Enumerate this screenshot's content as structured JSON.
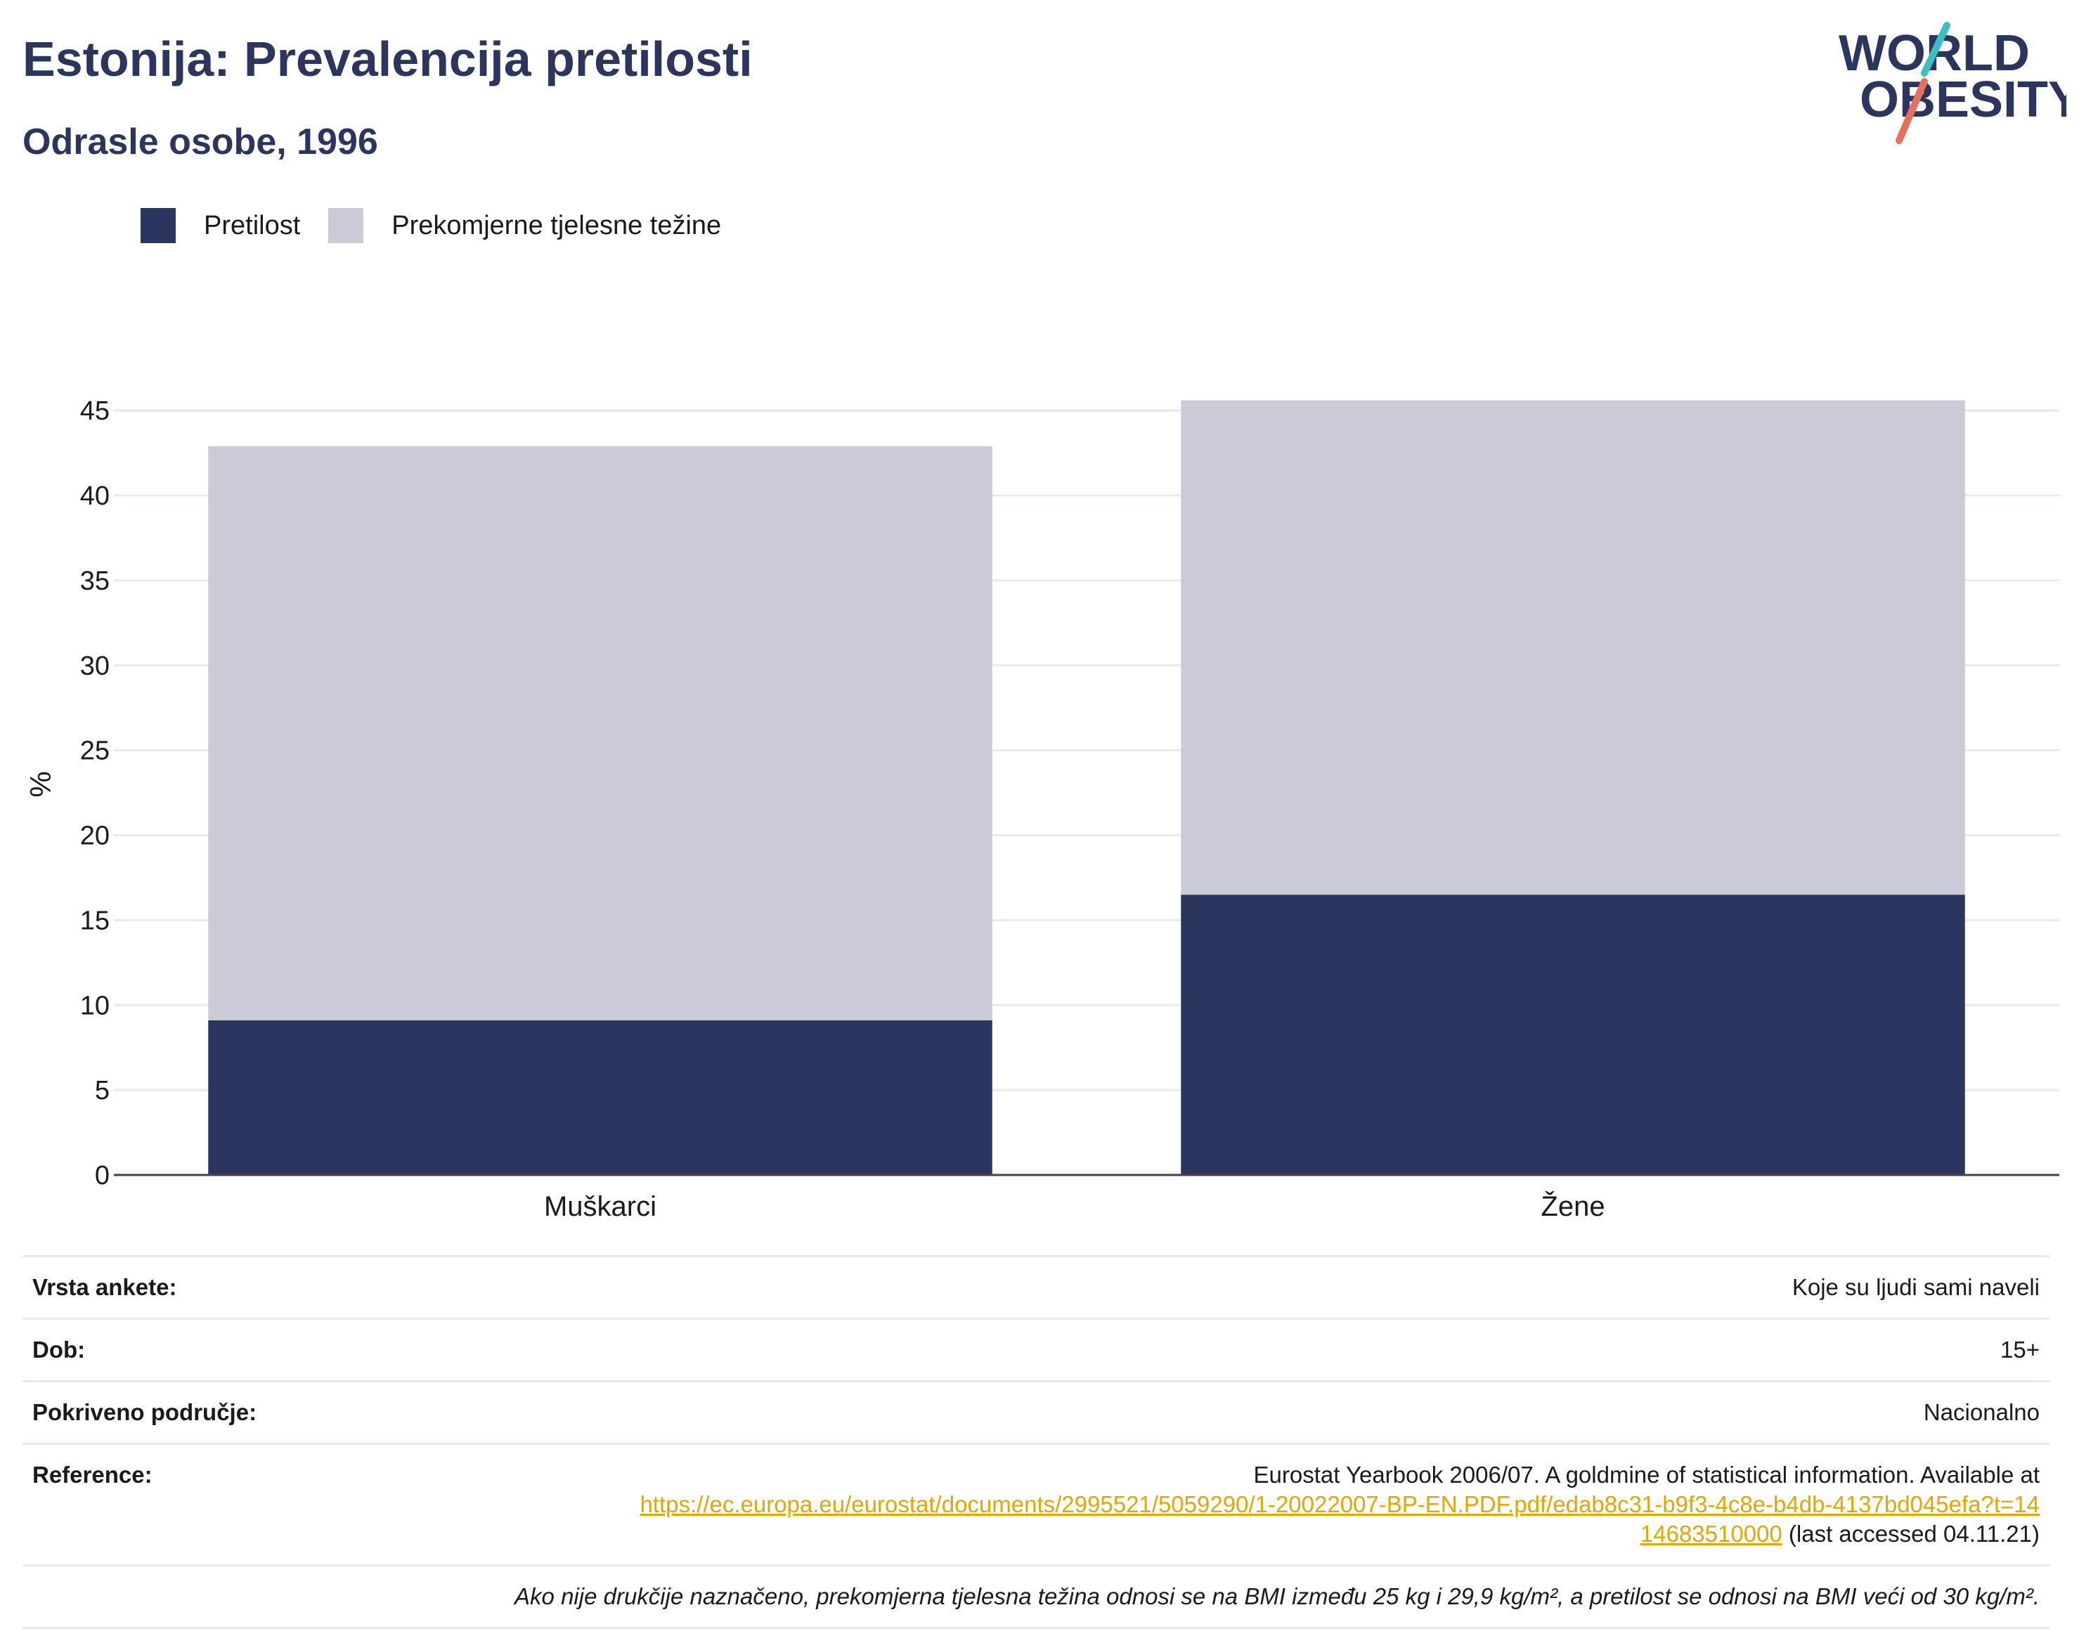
{
  "header": {
    "title": "Estonija: Prevalencija pretilosti",
    "subtitle": "Odrasle osobe, 1996"
  },
  "logo": {
    "line1": "WORLD",
    "line2": "OBESITY",
    "accent_teal": "#3bbfc0",
    "accent_coral": "#e8705a",
    "text_color": "#2b365f"
  },
  "legend": [
    {
      "label": "Pretilost",
      "color": "#2b365f"
    },
    {
      "label": "Prekomjerne tjelesne težine",
      "color": "#cacbd7"
    }
  ],
  "chart_data": {
    "type": "bar",
    "stacked": true,
    "categories": [
      "Muškarci",
      "Žene"
    ],
    "series": [
      {
        "name": "Pretilost",
        "values": [
          9.1,
          16.5
        ],
        "color": "#2b365f"
      },
      {
        "name": "Prekomjerne tjelesne težine",
        "values": [
          33.8,
          29.1
        ],
        "color": "#cacbd7"
      }
    ],
    "ylabel": "%",
    "ylim": [
      0,
      45
    ],
    "yticks": [
      0,
      5,
      10,
      15,
      20,
      25,
      30,
      35,
      40,
      45
    ],
    "grid": true,
    "legend_position": "top-left"
  },
  "info": {
    "survey_type_label": "Vrsta ankete:",
    "survey_type_value": "Koje su ljudi sami naveli",
    "age_label": "Dob:",
    "age_value": "15+",
    "coverage_label": "Pokriveno područje:",
    "coverage_value": "Nacionalno",
    "reference_label": "Reference:",
    "reference_text": "Eurostat Yearbook 2006/07. A goldmine of statistical information. Available at",
    "reference_url": "https://ec.europa.eu/eurostat/documents/2995521/5059290/1-20022007-BP-EN.PDF.pdf/edab8c31-b9f3-4c8e-b4db-4137bd045efa?t=1414683510000",
    "reference_suffix": "(last accessed 04.11.21)",
    "note": "Ako nije drukčije naznačeno, prekomjerna tjelesna težina odnosi se na BMI između 25 kg i 29,9 kg/m², a pretilost se odnosi na BMI veći od 30 kg/m²."
  }
}
